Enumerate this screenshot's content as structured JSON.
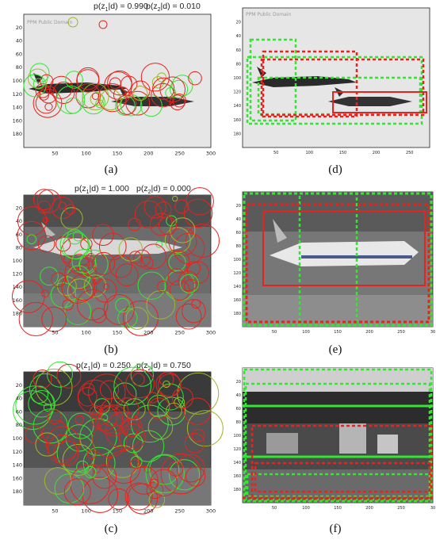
{
  "captions": [
    "(a)",
    "(b)",
    "(c)",
    "(d)",
    "(e)",
    "(f)"
  ],
  "panels": {
    "a": {
      "title_left": {
        "pre": "p(z",
        "sub": "1",
        "post": "|d) = 0.990"
      },
      "title_right": {
        "pre": "p(z",
        "sub": "2",
        "post": "|d) = 0.010"
      },
      "yticks": [
        "20",
        "40",
        "60",
        "80",
        "100",
        "120",
        "140",
        "160",
        "180"
      ],
      "xticks": [
        "50",
        "100",
        "150",
        "200",
        "250",
        "300"
      ],
      "watermark": "PPM Public Domain"
    },
    "b": {
      "title_left": {
        "pre": "p(z",
        "sub": "1",
        "post": "|d) = 1.000"
      },
      "title_right": {
        "pre": "p(z",
        "sub": "2",
        "post": "|d) = 0.000"
      },
      "yticks": [
        "20",
        "40",
        "60",
        "80",
        "100",
        "120",
        "140",
        "160",
        "180"
      ],
      "xticks": [
        "50",
        "100",
        "150",
        "200",
        "250",
        "300"
      ]
    },
    "c": {
      "title_left": {
        "pre": "p(z",
        "sub": "1",
        "post": "|d) = 0.250"
      },
      "title_right": {
        "pre": "p(z",
        "sub": "2",
        "post": "|d) = 0.750"
      },
      "yticks": [
        "20",
        "40",
        "60",
        "80",
        "100",
        "120",
        "140",
        "160",
        "180"
      ],
      "xticks": [
        "50",
        "100",
        "150",
        "200",
        "250",
        "300"
      ]
    },
    "d": {
      "yticks": [
        "20",
        "40",
        "60",
        "80",
        "100",
        "120",
        "140",
        "160",
        "180"
      ],
      "xticks": [
        "50",
        "100",
        "150",
        "200",
        "250"
      ],
      "watermark": "PPM Public Domain"
    },
    "e": {
      "yticks": [
        "20",
        "40",
        "60",
        "80",
        "100",
        "120",
        "140",
        "160",
        "180"
      ],
      "xticks": [
        "50",
        "100",
        "150",
        "200",
        "250",
        "30"
      ]
    },
    "f": {
      "yticks": [
        "20",
        "40",
        "60",
        "80",
        "100",
        "120",
        "140",
        "160",
        "180"
      ],
      "xticks": [
        "50",
        "100",
        "150",
        "200",
        "250",
        "30"
      ]
    }
  },
  "colors": {
    "red": "#e8231e",
    "green": "#33e633",
    "olive": "#9bb82a"
  }
}
